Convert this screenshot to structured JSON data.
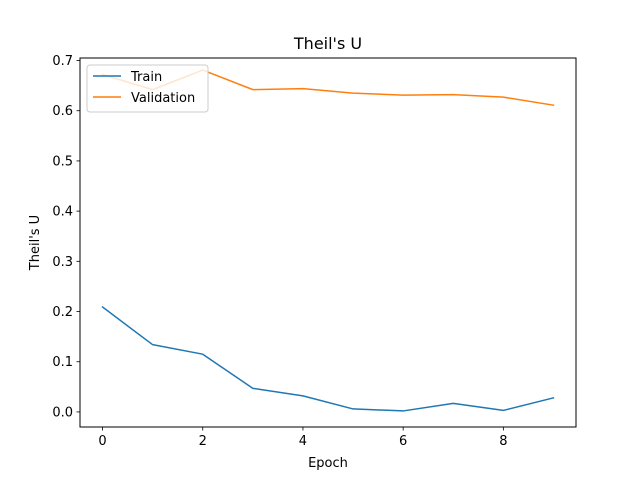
{
  "chart_data": {
    "type": "line",
    "title": "Theil's U",
    "xlabel": "Epoch",
    "ylabel": "Theil's U",
    "xlim": [
      -0.45,
      9.45
    ],
    "ylim": [
      -0.03,
      0.705
    ],
    "xticks": [
      0,
      2,
      4,
      6,
      8
    ],
    "xtick_labels": [
      "0",
      "2",
      "4",
      "6",
      "8"
    ],
    "yticks": [
      0.0,
      0.1,
      0.2,
      0.3,
      0.4,
      0.5,
      0.6,
      0.7
    ],
    "ytick_labels": [
      "0.0",
      "0.1",
      "0.2",
      "0.3",
      "0.4",
      "0.5",
      "0.6",
      "0.7"
    ],
    "x": [
      0,
      1,
      2,
      3,
      4,
      5,
      6,
      7,
      8,
      9
    ],
    "series": [
      {
        "name": "Train",
        "color": "#1f77b4",
        "values": [
          0.209,
          0.134,
          0.115,
          0.047,
          0.032,
          0.006,
          0.002,
          0.017,
          0.003,
          0.028
        ]
      },
      {
        "name": "Validation",
        "color": "#ff7f0e",
        "values": [
          0.672,
          0.642,
          0.681,
          0.642,
          0.644,
          0.635,
          0.631,
          0.632,
          0.627,
          0.611
        ]
      }
    ],
    "legend": {
      "position": "upper-left"
    },
    "grid": false
  }
}
